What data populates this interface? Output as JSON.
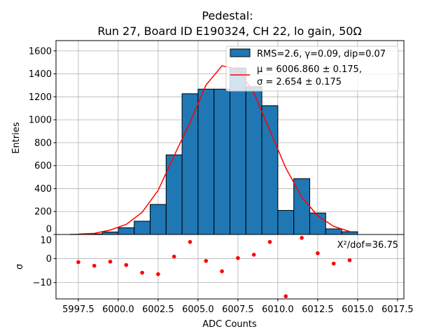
{
  "chart_data": [
    {
      "type": "bar",
      "panel": "histogram",
      "title": [
        "Pedestal:",
        "Run 27, Board ID E190324, CH 22, lo gain, 50Ω"
      ],
      "ylabel": "Entries",
      "xlim": [
        5996.1,
        6017.9
      ],
      "ylim": [
        0,
        1690
      ],
      "yticks": [
        "0",
        "200",
        "400",
        "600",
        "800",
        "1000",
        "1200",
        "1400",
        "1600"
      ],
      "grid": true,
      "legend_placement": "top-right",
      "bin_edges": [
        5997,
        5998,
        5999,
        6000,
        6001,
        6002,
        6003,
        6004,
        6005,
        6006,
        6007,
        6008,
        6009,
        6010,
        6011,
        6012,
        6013,
        6014,
        6015
      ],
      "values": [
        2,
        5,
        22,
        59,
        116,
        262,
        694,
        1227,
        1267,
        1267,
        1451,
        1288,
        1123,
        210,
        487,
        187,
        49,
        24
      ],
      "bar_color": "#1f77b4",
      "series": [
        {
          "name": "RMS=2.6, γ=0.09, dip=0.07",
          "kind": "histogram"
        },
        {
          "name_lines": [
            "μ = 6006.860 ± 0.175,",
            "σ = 2.654 ± 0.175"
          ],
          "kind": "line",
          "color": "#ff0000",
          "x": [
            5997.5,
            5998.5,
            5999.5,
            6000.5,
            6001.5,
            6002.5,
            6003.5,
            6004.5,
            6005.5,
            6006.5,
            6007.5,
            6008.5,
            6009.5,
            6010.5,
            6011.5,
            6012.5,
            6013.5,
            6014.5
          ],
          "y": [
            4,
            10,
            39,
            88,
            194,
            385,
            686,
            977,
            1303,
            1470,
            1441,
            1232,
            906,
            580,
            326,
            163,
            71,
            26
          ]
        }
      ]
    },
    {
      "type": "scatter",
      "panel": "residuals",
      "xlabel": "ADC Counts",
      "ylabel": "σ",
      "xlim": [
        5996.1,
        6017.9
      ],
      "ylim": [
        -16.8,
        10
      ],
      "xticks": [
        "5997.5",
        "6000.0",
        "6002.5",
        "6005.0",
        "6007.5",
        "6010.0",
        "6012.5",
        "6015.0",
        "6017.5"
      ],
      "xtick_values": [
        5997.5,
        6000,
        6002.5,
        6005,
        6007.5,
        6010,
        6012.5,
        6015,
        6017.5
      ],
      "yticks": [
        "10",
        "0",
        "−10"
      ],
      "ytick_values": [
        10,
        0,
        -10
      ],
      "grid": true,
      "color": "#ff0000",
      "annotation": "X²/dof=36.75",
      "x": [
        5997.5,
        5998.5,
        5999.5,
        6000.5,
        6001.5,
        6002.5,
        6003.5,
        6004.5,
        6005.5,
        6006.5,
        6007.5,
        6008.5,
        6009.5,
        6010.5,
        6011.5,
        6012.5,
        6013.5,
        6014.5
      ],
      "y": [
        -1.5,
        -3.0,
        -1.3,
        -2.7,
        -5.9,
        -6.5,
        0.8,
        6.9,
        -1.0,
        -5.3,
        0.2,
        1.6,
        6.9,
        -15.7,
        8.6,
        2.2,
        -2.1,
        -0.7
      ]
    }
  ]
}
